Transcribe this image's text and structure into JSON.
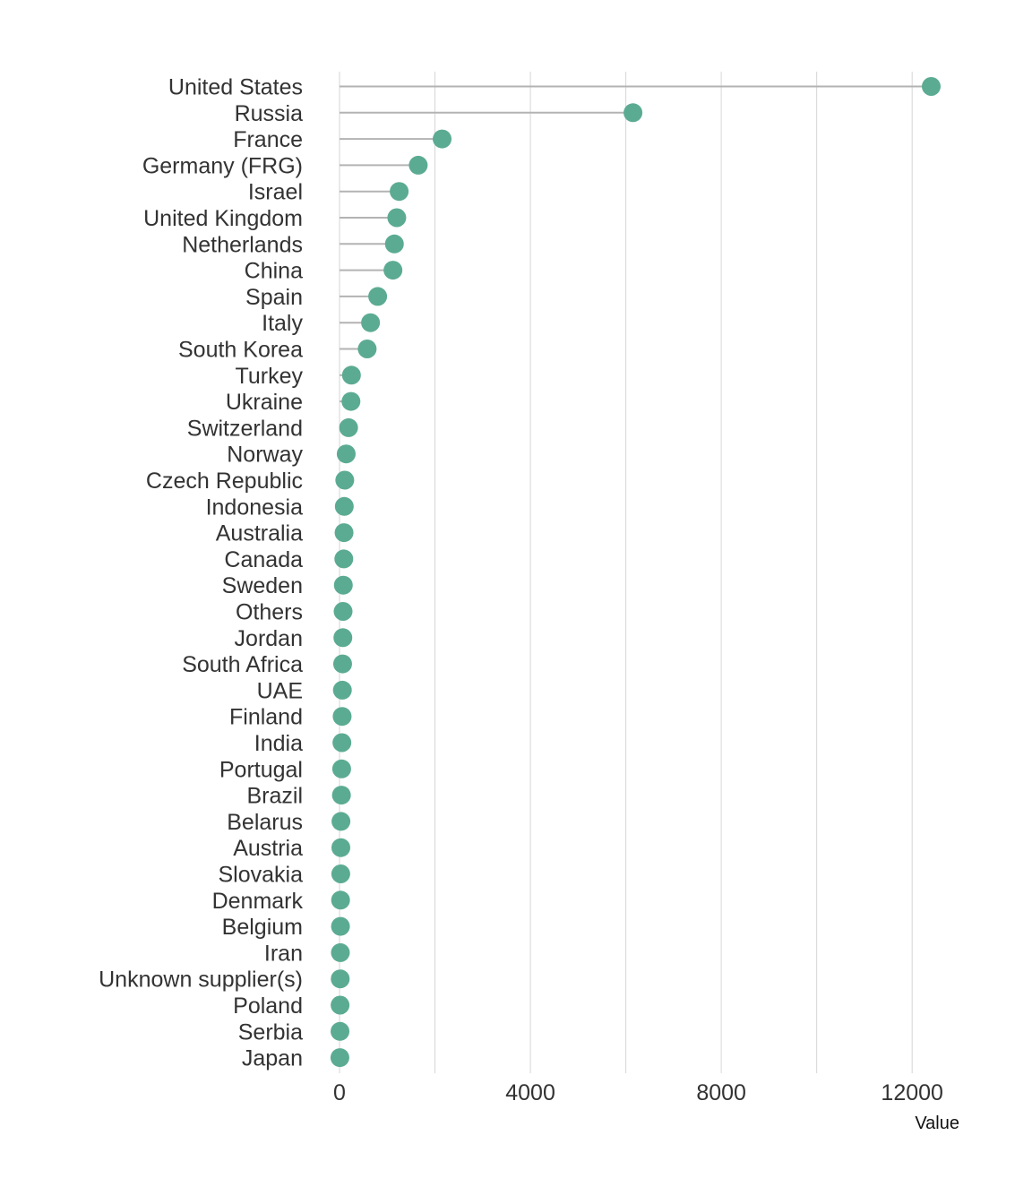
{
  "chart_data": {
    "type": "lollipop",
    "title": "",
    "xlabel": "Value",
    "ylabel": "",
    "xlim": [
      0,
      12400
    ],
    "xticks": [
      0,
      4000,
      8000,
      12000
    ],
    "xtick_labels": [
      "0",
      "4000",
      "8000",
      "12000"
    ],
    "minor_gridlines": [
      2000,
      6000,
      10000
    ],
    "grid": "vertical",
    "colors": {
      "dot": "#5bab92",
      "stem": "#b3b3b3",
      "grid": "#d6d6d6"
    },
    "categories": [
      "United States",
      "Russia",
      "France",
      "Germany (FRG)",
      "Israel",
      "United Kingdom",
      "Netherlands",
      "China",
      "Spain",
      "Italy",
      "South Korea",
      "Turkey",
      "Ukraine",
      "Switzerland",
      "Norway",
      "Czech Republic",
      "Indonesia",
      "Australia",
      "Canada",
      "Sweden",
      "Others",
      "Jordan",
      "South Africa",
      "UAE",
      "Finland",
      "India",
      "Portugal",
      "Brazil",
      "Belarus",
      "Austria",
      "Slovakia",
      "Denmark",
      "Belgium",
      "Iran",
      "Unknown supplier(s)",
      "Poland",
      "Serbia",
      "Japan"
    ],
    "values": [
      12400,
      6150,
      2150,
      1650,
      1250,
      1200,
      1150,
      1120,
      800,
      650,
      580,
      250,
      240,
      190,
      140,
      110,
      100,
      95,
      90,
      80,
      75,
      70,
      65,
      60,
      55,
      50,
      45,
      40,
      30,
      28,
      26,
      22,
      20,
      18,
      15,
      12,
      10,
      8
    ]
  }
}
